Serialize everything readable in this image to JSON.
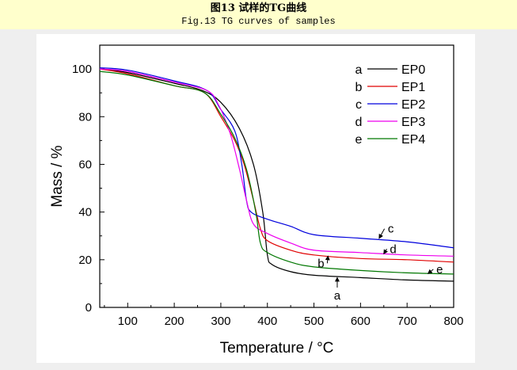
{
  "header": {
    "title_cn": "图13 试样的TG曲线",
    "title_en": "Fig.13 TG curves of samples"
  },
  "chart_data": {
    "type": "line",
    "title": "Fig.13 TG curves of samples",
    "xlabel": "Temperature / °C",
    "ylabel": "Mass / %",
    "xlim": [
      40,
      800
    ],
    "ylim": [
      0,
      110
    ],
    "xticks": [
      100,
      200,
      300,
      400,
      500,
      600,
      700,
      800
    ],
    "yticks": [
      0,
      20,
      40,
      60,
      80,
      100
    ],
    "grid": false,
    "legend_position": "top-right",
    "series": [
      {
        "label": "a",
        "name": "EP0",
        "color": "#000000",
        "x": [
          40,
          100,
          200,
          260,
          300,
          340,
          370,
          390,
          400,
          410,
          450,
          500,
          600,
          700,
          800
        ],
        "y": [
          100,
          98.5,
          94,
          91,
          86,
          75,
          60,
          40,
          22,
          18,
          15,
          13.5,
          12.5,
          11.5,
          11
        ]
      },
      {
        "label": "b",
        "name": "EP1",
        "color": "#e00000",
        "x": [
          40,
          100,
          200,
          265,
          300,
          330,
          350,
          370,
          385,
          400,
          450,
          500,
          600,
          700,
          800
        ],
        "y": [
          100,
          98,
          93,
          90,
          80,
          70,
          60,
          45,
          33,
          28,
          24,
          22,
          20.5,
          20,
          19
        ]
      },
      {
        "label": "c",
        "name": "EP2",
        "color": "#0000dd",
        "x": [
          40,
          100,
          200,
          270,
          300,
          330,
          345,
          355,
          365,
          400,
          450,
          500,
          600,
          700,
          800
        ],
        "y": [
          100.5,
          99.5,
          95,
          91,
          83,
          74,
          60,
          45,
          40,
          37,
          34,
          30.5,
          29,
          27.5,
          25
        ]
      },
      {
        "label": "d",
        "name": "EP3",
        "color": "#ee00ee",
        "x": [
          40,
          100,
          200,
          270,
          295,
          320,
          340,
          355,
          370,
          400,
          450,
          500,
          600,
          700,
          800
        ],
        "y": [
          100,
          99,
          94.5,
          91,
          85,
          73,
          58,
          45,
          35,
          31,
          27,
          24,
          23,
          22,
          21.5
        ]
      },
      {
        "label": "e",
        "name": "EP4",
        "color": "#007700",
        "x": [
          40,
          100,
          200,
          265,
          300,
          330,
          355,
          375,
          385,
          400,
          450,
          500,
          600,
          700,
          800
        ],
        "y": [
          99,
          97.5,
          93,
          90,
          81,
          71,
          58,
          40,
          27,
          23,
          19,
          17,
          15.5,
          14.5,
          14
        ]
      }
    ],
    "annotations": [
      {
        "text": "a",
        "x": 550,
        "y": 5,
        "arrow_to": [
          550,
          12.5
        ]
      },
      {
        "text": "b",
        "x": 515,
        "y": 18.5,
        "arrow_to": [
          530,
          21.5
        ]
      },
      {
        "text": "c",
        "x": 665,
        "y": 33,
        "arrow_to": [
          640,
          29
        ]
      },
      {
        "text": "d",
        "x": 670,
        "y": 24.5,
        "arrow_to": [
          650,
          22.5
        ]
      },
      {
        "text": "e",
        "x": 770,
        "y": 16,
        "arrow_to": [
          745,
          14.2
        ]
      }
    ]
  }
}
